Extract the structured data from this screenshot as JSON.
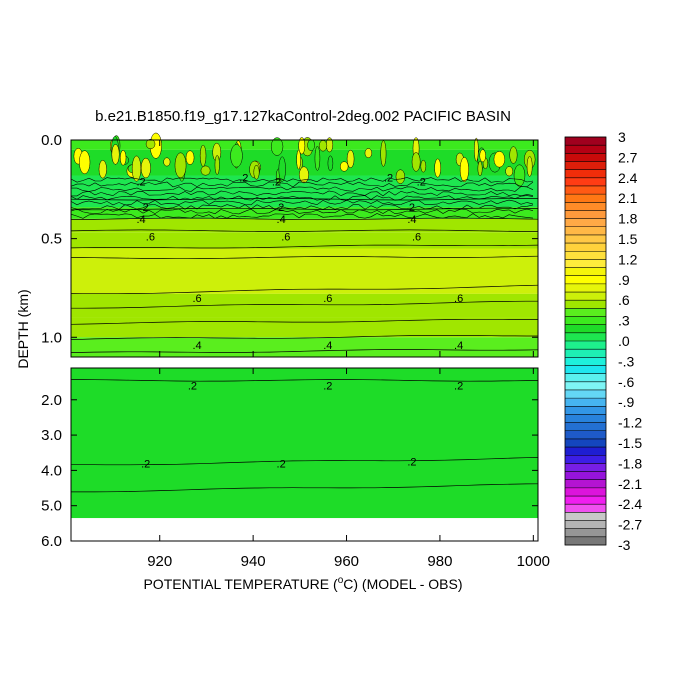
{
  "chart_data": {
    "type": "contour",
    "title": "b.e21.B1850.f19_g17.127kaControl-2deg.002 PACIFIC BASIN",
    "xlabel_pre": "POTENTIAL TEMPERATURE (",
    "xlabel_sup": "o",
    "xlabel_post": "C) (MODEL - OBS)",
    "ylabel": "DEPTH (km)",
    "xlim": [
      901,
      1001
    ],
    "x_ticks": [
      920,
      940,
      960,
      980,
      1000
    ],
    "x_tick_labels": [
      "920",
      "940",
      "960",
      "980",
      "1000"
    ],
    "upper_panel": {
      "depth_range_km": [
        0.0,
        1.1
      ],
      "y_ticks": [
        0.0,
        0.5,
        1.0
      ],
      "y_tick_labels": [
        "0.0",
        "0.5",
        "1.0"
      ]
    },
    "lower_panel": {
      "depth_range_km": [
        1.1,
        6.0
      ],
      "y_ticks": [
        2.0,
        3.0,
        4.0,
        5.0,
        6.0
      ],
      "y_tick_labels": [
        "2.0",
        "3.0",
        "4.0",
        "5.0",
        "6.0"
      ]
    },
    "data_bottom_km": 5.35,
    "bands": [
      {
        "from_km": 0.0,
        "to_km": 0.05,
        "value": 0.3
      },
      {
        "from_km": 0.05,
        "to_km": 0.18,
        "value": 0.2
      },
      {
        "from_km": 0.18,
        "to_km": 0.34,
        "value": 0.1
      },
      {
        "from_km": 0.34,
        "to_km": 0.4,
        "value": 0.3
      },
      {
        "from_km": 0.4,
        "to_km": 0.47,
        "value": 0.5
      },
      {
        "from_km": 0.47,
        "to_km": 0.55,
        "value": 0.6
      },
      {
        "from_km": 0.55,
        "to_km": 0.78,
        "value": 0.7
      },
      {
        "from_km": 0.78,
        "to_km": 0.9,
        "value": 0.6
      },
      {
        "from_km": 0.9,
        "to_km": 1.0,
        "value": 0.5
      },
      {
        "from_km": 1.0,
        "to_km": 1.1,
        "value": 0.4
      },
      {
        "from_km": 1.1,
        "to_km": 5.35,
        "value": 0.2
      }
    ],
    "contour_lines": [
      {
        "value": 0.2,
        "depths_km": [
          0.3,
          0.3
        ]
      },
      {
        "value": 0.3,
        "depths_km": [
          0.35,
          0.35
        ]
      },
      {
        "value": 0.4,
        "depths_km": [
          0.4,
          0.4
        ]
      },
      {
        "value": 0.5,
        "depths_km": [
          0.46,
          0.46
        ]
      },
      {
        "value": 0.6,
        "depths_km": [
          0.55,
          0.53
        ]
      },
      {
        "value": 0.7,
        "depths_km": [
          0.6,
          0.59
        ]
      },
      {
        "value": 0.7,
        "depths_km": [
          0.78,
          0.74
        ]
      },
      {
        "value": 0.6,
        "depths_km": [
          0.85,
          0.82
        ]
      },
      {
        "value": 0.5,
        "depths_km": [
          0.93,
          0.91
        ]
      },
      {
        "value": 0.4,
        "depths_km": [
          1.01,
          0.99
        ]
      },
      {
        "value": 0.3,
        "depths_km": [
          1.08,
          1.06
        ]
      },
      {
        "value": 0.2,
        "depths_km": [
          1.45,
          1.45
        ]
      },
      {
        "value": 0.2,
        "depths_km": [
          3.85,
          3.65
        ]
      },
      {
        "value": 0.1,
        "depths_km": [
          4.6,
          4.4
        ]
      }
    ],
    "contour_labels": [
      {
        "text": ".2",
        "x": 916,
        "depth_km": 0.21
      },
      {
        "text": ".2",
        "x": 945,
        "depth_km": 0.21
      },
      {
        "text": ".2",
        "x": 976,
        "depth_km": 0.21
      },
      {
        "text": ".2",
        "x": 938,
        "depth_km": 0.19
      },
      {
        "text": ".2",
        "x": 969,
        "depth_km": 0.19
      },
      {
        "text": "2",
        "x": 917,
        "depth_km": 0.34
      },
      {
        "text": "2",
        "x": 946,
        "depth_km": 0.34
      },
      {
        "text": "2",
        "x": 974,
        "depth_km": 0.34
      },
      {
        "text": ".4",
        "x": 916,
        "depth_km": 0.4
      },
      {
        "text": ".4",
        "x": 946,
        "depth_km": 0.4
      },
      {
        "text": ".4",
        "x": 974,
        "depth_km": 0.4
      },
      {
        "text": ".6",
        "x": 918,
        "depth_km": 0.49
      },
      {
        "text": ".6",
        "x": 947,
        "depth_km": 0.49
      },
      {
        "text": ".6",
        "x": 975,
        "depth_km": 0.49
      },
      {
        "text": ".6",
        "x": 928,
        "depth_km": 0.8
      },
      {
        "text": ".6",
        "x": 956,
        "depth_km": 0.8
      },
      {
        "text": ".6",
        "x": 984,
        "depth_km": 0.8
      },
      {
        "text": ".4",
        "x": 928,
        "depth_km": 1.04
      },
      {
        "text": ".4",
        "x": 956,
        "depth_km": 1.04
      },
      {
        "text": ".4",
        "x": 984,
        "depth_km": 1.04
      },
      {
        "text": ".2",
        "x": 927,
        "depth_km": 1.6
      },
      {
        "text": ".2",
        "x": 956,
        "depth_km": 1.6
      },
      {
        "text": ".2",
        "x": 984,
        "depth_km": 1.6
      },
      {
        "text": ".2",
        "x": 917,
        "depth_km": 3.8
      },
      {
        "text": ".2",
        "x": 946,
        "depth_km": 3.8
      },
      {
        "text": ".2",
        "x": 974,
        "depth_km": 3.75
      }
    ],
    "colorbar": {
      "levels": [
        "3",
        "2.7",
        "2.4",
        "2.1",
        "1.8",
        "1.5",
        "1.2",
        ".9",
        ".6",
        ".3",
        ".0",
        "-.3",
        "-.6",
        "-.9",
        "-1.2",
        "-1.5",
        "-1.8",
        "-2.1",
        "-2.4",
        "-2.7",
        "-3"
      ],
      "colors": [
        "#a0001e",
        "#b40014",
        "#c80a0a",
        "#dc1e0a",
        "#f02d0a",
        "#ff3c14",
        "#ff5a14",
        "#ff7814",
        "#ff8c28",
        "#ff9a3c",
        "#ffa946",
        "#ffb846",
        "#ffc846",
        "#ffd23c",
        "#ffe03c",
        "#ffec3c",
        "#f5f50a",
        "#ffff00",
        "#e6f50a",
        "#cdf00a",
        "#a0e600",
        "#5aee1e",
        "#3cea1e",
        "#1edc28",
        "#1ee650",
        "#1ef08c",
        "#1ef0b4",
        "#1ef0dc",
        "#1ee6f0",
        "#5af0f0",
        "#7ef5f5",
        "#64d7f5",
        "#46b4f0",
        "#3296e6",
        "#2882dc",
        "#2370d2",
        "#1e5ac8",
        "#1446be",
        "#1e1ed2",
        "#3c1ee6",
        "#781ee6",
        "#9614dc",
        "#b414d2",
        "#dc14dc",
        "#f01ef0",
        "#f050f0",
        "#c8c8c8",
        "#b4b4b4",
        "#969696",
        "#787878"
      ]
    }
  }
}
